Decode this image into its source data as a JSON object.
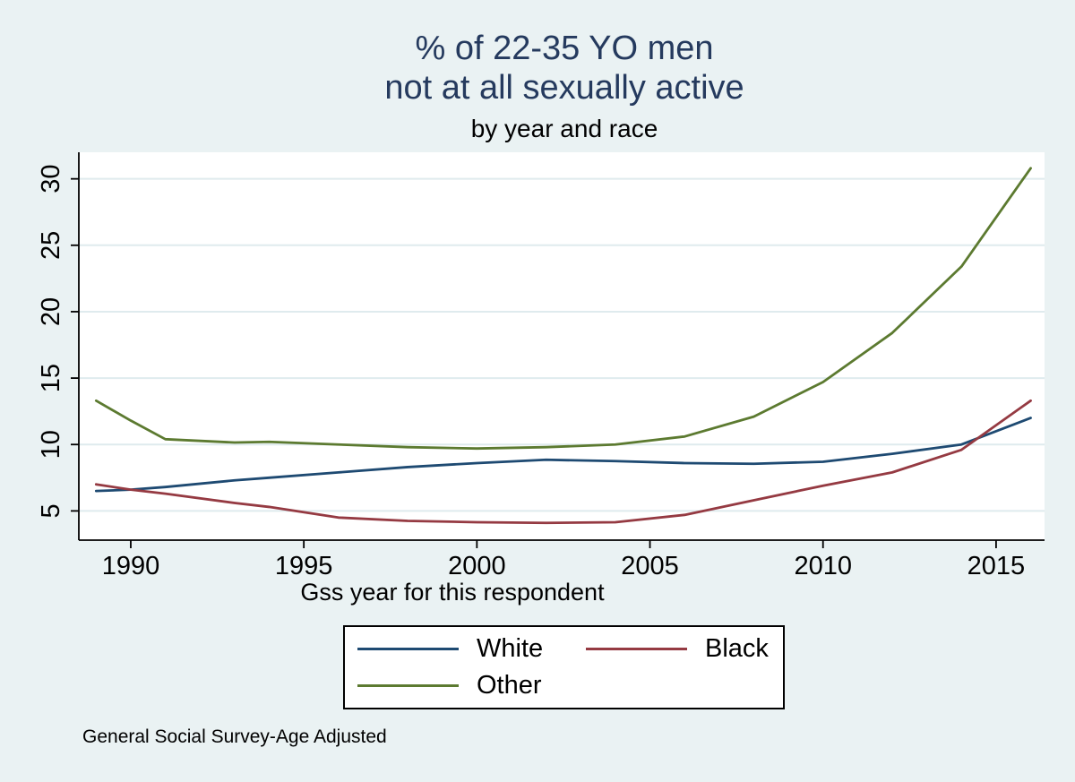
{
  "title": {
    "line1": "% of 22-35 YO men",
    "line2": "not at all sexually active",
    "subtitle": "by year and race",
    "title_color": "#253a5e"
  },
  "footnote": "General Social Survey-Age Adjusted",
  "chart_data": {
    "type": "line",
    "title": "% of 22-35 YO men not at all sexually active",
    "subtitle": "by year and race",
    "xlabel": "Gss year for this respondent",
    "ylabel": "",
    "x": [
      1989,
      1990,
      1991,
      1993,
      1994,
      1996,
      1998,
      2000,
      2002,
      2004,
      2006,
      2008,
      2010,
      2012,
      2014,
      2016
    ],
    "series": [
      {
        "name": "White",
        "color": "#1e4a72",
        "values": [
          6.5,
          6.6,
          6.8,
          7.3,
          7.5,
          7.9,
          8.3,
          8.6,
          8.85,
          8.75,
          8.6,
          8.55,
          8.7,
          9.3,
          10.0,
          12.0
        ]
      },
      {
        "name": "Black",
        "color": "#953a42",
        "values": [
          7.0,
          6.6,
          6.3,
          5.6,
          5.3,
          4.5,
          4.25,
          4.15,
          4.1,
          4.15,
          4.7,
          5.8,
          6.9,
          7.9,
          9.6,
          13.3
        ]
      },
      {
        "name": "Other",
        "color": "#5c7a30",
        "values": [
          13.3,
          11.8,
          10.4,
          10.15,
          10.2,
          10.0,
          9.8,
          9.7,
          9.8,
          10.0,
          10.6,
          12.1,
          14.7,
          18.4,
          23.4,
          30.8
        ]
      }
    ],
    "x_ticks": [
      1990,
      1995,
      2000,
      2005,
      2010,
      2015
    ],
    "y_ticks": [
      5,
      10,
      15,
      20,
      25,
      30
    ],
    "xlim": [
      1988.5,
      2016.4
    ],
    "ylim": [
      2.8,
      32.0
    ],
    "grid": "horizontal-only",
    "grid_color": "#dfebee",
    "plot_bg": "#ffffff",
    "page_bg": "#eaf2f3",
    "axis_color": "#000000",
    "legend_position": "bottom-center"
  }
}
